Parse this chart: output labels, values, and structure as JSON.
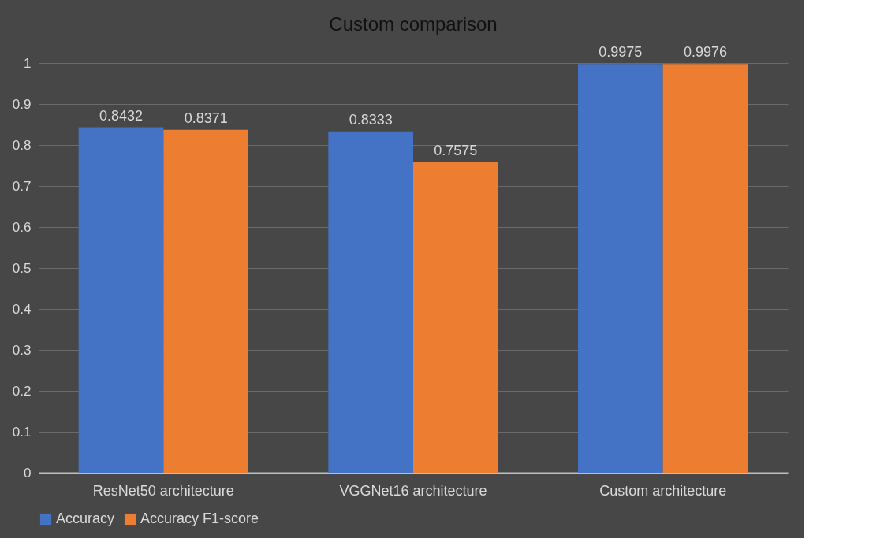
{
  "chart_data": {
    "type": "bar",
    "title": "Custom comparison",
    "categories": [
      "ResNet50 architecture",
      "VGGNet16 architecture",
      "Custom architecture"
    ],
    "series": [
      {
        "name": "Accuracy",
        "color": "#4472c4",
        "values": [
          0.8432,
          0.8333,
          0.9975
        ]
      },
      {
        "name": "Accuracy F1-score",
        "color": "#ed7d31",
        "values": [
          0.8371,
          0.7575,
          0.9976
        ]
      }
    ],
    "ylim": [
      0,
      1
    ],
    "yticks": [
      0,
      0.1,
      0.2,
      0.3,
      0.4,
      0.5,
      0.6,
      0.7,
      0.8,
      0.9,
      1
    ],
    "grid": "y",
    "legend": "bottom",
    "data_labels": true
  }
}
